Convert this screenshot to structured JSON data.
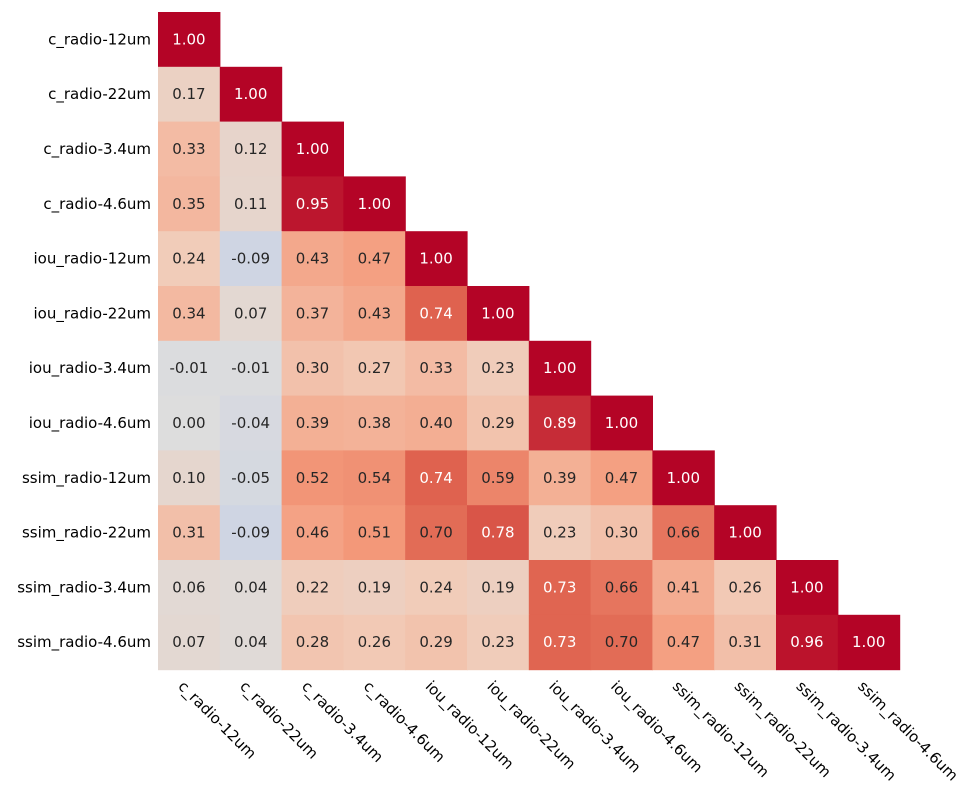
{
  "chart_data": {
    "type": "heatmap",
    "title": "",
    "xlabel": "",
    "ylabel": "",
    "layout": "lower-triangle",
    "colormap": "coolwarm",
    "value_range": [
      -1,
      1
    ],
    "value_format": "2 decimals",
    "labels": [
      "c_radio-12um",
      "c_radio-22um",
      "c_radio-3.4um",
      "c_radio-4.6um",
      "iou_radio-12um",
      "iou_radio-22um",
      "iou_radio-3.4um",
      "iou_radio-4.6um",
      "ssim_radio-12um",
      "ssim_radio-22um",
      "ssim_radio-3.4um",
      "ssim_radio-4.6um"
    ],
    "values": [
      [
        1.0
      ],
      [
        0.17,
        1.0
      ],
      [
        0.33,
        0.12,
        1.0
      ],
      [
        0.35,
        0.11,
        0.95,
        1.0
      ],
      [
        0.24,
        -0.09,
        0.43,
        0.47,
        1.0
      ],
      [
        0.34,
        0.07,
        0.37,
        0.43,
        0.74,
        1.0
      ],
      [
        -0.01,
        -0.01,
        0.3,
        0.27,
        0.33,
        0.23,
        1.0
      ],
      [
        0.0,
        -0.04,
        0.39,
        0.38,
        0.4,
        0.29,
        0.89,
        1.0
      ],
      [
        0.1,
        -0.05,
        0.52,
        0.54,
        0.74,
        0.59,
        0.39,
        0.47,
        1.0
      ],
      [
        0.31,
        -0.09,
        0.46,
        0.51,
        0.7,
        0.78,
        0.23,
        0.3,
        0.66,
        1.0
      ],
      [
        0.06,
        0.04,
        0.22,
        0.19,
        0.24,
        0.19,
        0.73,
        0.66,
        0.41,
        0.26,
        1.0
      ],
      [
        0.07,
        0.04,
        0.28,
        0.26,
        0.29,
        0.23,
        0.73,
        0.7,
        0.47,
        0.31,
        0.96,
        1.0
      ]
    ]
  }
}
